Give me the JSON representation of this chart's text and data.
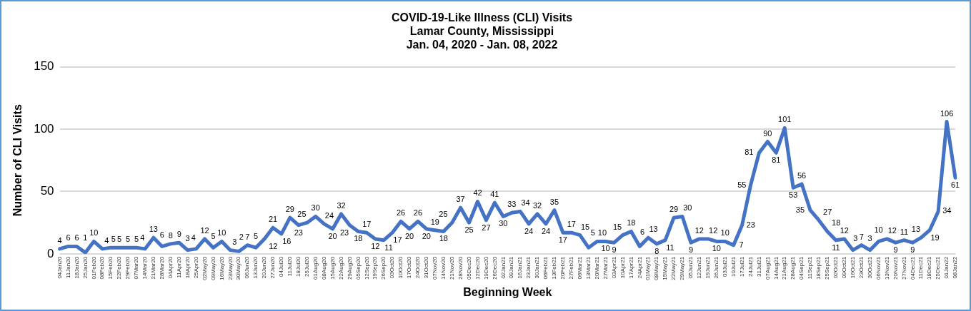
{
  "chart_data": {
    "type": "line",
    "title": "COVID-19-Like Illness (CLI) Visits\nLamar County, Mississippi\nJan. 04, 2020 - Jan. 08, 2022",
    "xlabel": "Beginning Week",
    "ylabel": "Number of CLI Visits",
    "categories": [
      "04Jan20",
      "11Jan20",
      "18Jan20",
      "25Jan20",
      "01Feb20",
      "08Feb20",
      "15Feb20",
      "22Feb20",
      "29Feb20",
      "07Mar20",
      "14Mar20",
      "21Mar20",
      "28Mar20",
      "04Apr20",
      "11Apr20",
      "18Apr20",
      "25Apr20",
      "02May20",
      "09May20",
      "16May20",
      "23May20",
      "30May20",
      "06Jun20",
      "13Jun20",
      "20Jun20",
      "27Jun20",
      "04Jul20",
      "11Jul20",
      "18Jul20",
      "25Jul20",
      "01Aug20",
      "08Aug20",
      "15Aug20",
      "22Aug20",
      "29Aug20",
      "05Sep20",
      "12Sep20",
      "19Sep20",
      "26Sep20",
      "03Oct20",
      "10Oct20",
      "17Oct20",
      "24Oct20",
      "31Oct20",
      "07Nov20",
      "14Nov20",
      "21Nov20",
      "28Nov20",
      "05Dec20",
      "12Dec20",
      "19Dec20",
      "26Dec20",
      "02Jan21",
      "09Jan21",
      "16Jan21",
      "23Jan21",
      "30Jan21",
      "06Feb21",
      "13Feb21",
      "20Feb21",
      "27Feb21",
      "06Mar21",
      "13Mar21",
      "20Mar21",
      "27Mar21",
      "03Apr21",
      "10Apr21",
      "17Apr21",
      "24Apr21",
      "01May21",
      "08May21",
      "15May21",
      "22May21",
      "29May21",
      "05Jun21",
      "12Jun21",
      "19Jun21",
      "26Jun21",
      "03Jul21",
      "10Jul21",
      "17Jul21",
      "24Jul21",
      "31Jul21",
      "07Aug21",
      "14Aug21",
      "21Aug21",
      "28Aug21",
      "04Sep21",
      "11Sep21",
      "18Sep21",
      "25Sep21",
      "02Oct21",
      "09Oct21",
      "16Oct21",
      "23Oct21",
      "30Oct21",
      "06Nov21",
      "13Nov21",
      "20Nov21",
      "27Nov21",
      "04Dec21",
      "11Dec21",
      "18Dec21",
      "25Dec21",
      "01Jan22",
      "08Jan22"
    ],
    "series": [
      {
        "color": "#4472c4",
        "values": [
          4,
          6,
          6,
          1,
          10,
          4,
          5,
          5,
          5,
          5,
          4,
          13,
          6,
          8,
          9,
          3,
          4,
          12,
          5,
          10,
          3,
          2,
          7,
          5,
          12,
          21,
          16,
          29,
          23,
          25,
          30,
          24,
          20,
          32,
          23,
          18,
          17,
          12,
          11,
          17,
          26,
          20,
          26,
          20,
          19,
          18,
          25,
          37,
          25,
          42,
          27,
          41,
          30,
          33,
          34,
          24,
          32,
          24,
          35,
          17,
          17,
          15,
          5,
          10,
          10,
          9,
          15,
          18,
          6,
          13,
          8,
          11,
          29,
          30,
          9,
          12,
          12,
          10,
          10,
          7,
          23,
          55,
          81,
          90,
          81,
          101,
          53,
          56,
          35,
          27,
          18,
          11,
          12,
          3,
          7,
          3,
          10,
          12,
          9,
          11,
          9,
          13,
          19,
          34,
          106,
          61
        ]
      }
    ],
    "ylim": [
      0,
      150
    ],
    "yticks": [
      0,
      50,
      100,
      150
    ],
    "grid": "y",
    "legend": false,
    "marker": "none",
    "line_style": "solid",
    "data_labels": true
  }
}
